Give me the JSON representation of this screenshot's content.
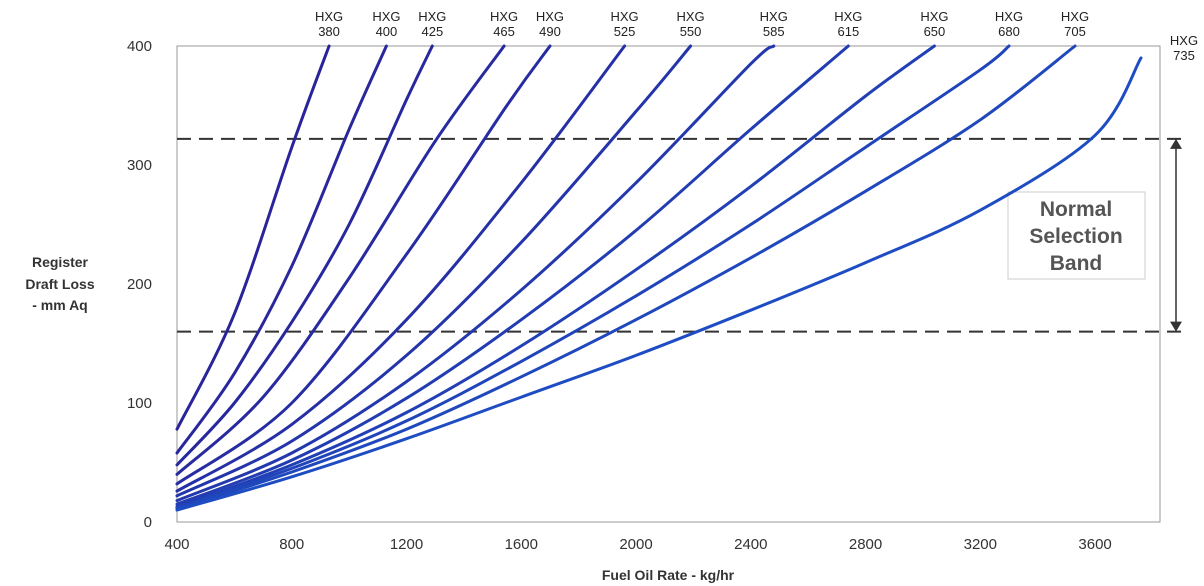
{
  "chart_data": {
    "type": "line",
    "title": "",
    "xlabel": "Fuel Oil Rate - kg/hr",
    "ylabel_lines": [
      "Register",
      "Draft Loss",
      "- mm Aq"
    ],
    "xlim": [
      400,
      3800
    ],
    "ylim": [
      0,
      400
    ],
    "x_ticks": [
      400,
      800,
      1200,
      1600,
      2000,
      2400,
      2800,
      3200,
      3600
    ],
    "y_ticks": [
      0,
      100,
      200,
      300,
      400
    ],
    "grid": false,
    "line_color": "#2a2aa0",
    "band": {
      "lower": 160,
      "upper": 322,
      "label_lines": [
        "Normal",
        "Selection",
        "Band"
      ]
    },
    "series": [
      {
        "name": "HXG 380",
        "label_lines": [
          "HXG",
          "380"
        ],
        "color": "#2a249a",
        "x": [
          400,
          600,
          800,
          930
        ],
        "y": [
          78,
          175,
          315,
          400
        ]
      },
      {
        "name": "HXG 400",
        "label_lines": [
          "HXG",
          "400"
        ],
        "color": "#2a269c",
        "x": [
          400,
          600,
          800,
          1000,
          1130
        ],
        "y": [
          58,
          125,
          215,
          330,
          400
        ]
      },
      {
        "name": "HXG 425",
        "label_lines": [
          "HXG",
          "425"
        ],
        "color": "#28289e",
        "x": [
          400,
          600,
          800,
          1000,
          1200,
          1290
        ],
        "y": [
          48,
          100,
          168,
          250,
          355,
          400
        ]
      },
      {
        "name": "HXG 465",
        "label_lines": [
          "HXG",
          "465"
        ],
        "color": "#282aa0",
        "x": [
          400,
          700,
          1000,
          1300,
          1540
        ],
        "y": [
          40,
          105,
          205,
          320,
          400
        ]
      },
      {
        "name": "HXG 490",
        "label_lines": [
          "HXG",
          "490"
        ],
        "color": "#262ca2",
        "x": [
          400,
          800,
          1200,
          1550,
          1700
        ],
        "y": [
          32,
          100,
          225,
          350,
          400
        ]
      },
      {
        "name": "HXG 525",
        "label_lines": [
          "HXG",
          "525"
        ],
        "color": "#2630a6",
        "x": [
          400,
          800,
          1200,
          1600,
          1960
        ],
        "y": [
          26,
          82,
          170,
          285,
          400
        ]
      },
      {
        "name": "HXG 550",
        "label_lines": [
          "HXG",
          "550"
        ],
        "color": "#2434aa",
        "x": [
          400,
          800,
          1200,
          1600,
          2000,
          2190
        ],
        "y": [
          22,
          68,
          140,
          235,
          345,
          400
        ]
      },
      {
        "name": "HXG 585",
        "label_lines": [
          "HXG",
          "585"
        ],
        "color": "#2438ae",
        "x": [
          400,
          800,
          1200,
          1600,
          2000,
          2400,
          2480
        ],
        "y": [
          18,
          58,
          118,
          195,
          285,
          385,
          400
        ]
      },
      {
        "name": "HXG 615",
        "label_lines": [
          "HXG",
          "615"
        ],
        "color": "#223cb2",
        "x": [
          400,
          800,
          1200,
          1600,
          2000,
          2400,
          2740
        ],
        "y": [
          15,
          52,
          104,
          170,
          245,
          330,
          400
        ]
      },
      {
        "name": "HXG 650",
        "label_lines": [
          "HXG",
          "650"
        ],
        "color": "#2240b6",
        "x": [
          400,
          800,
          1200,
          1600,
          2000,
          2400,
          2800,
          3040
        ],
        "y": [
          13,
          48,
          92,
          148,
          212,
          282,
          358,
          400
        ]
      },
      {
        "name": "HXG 680",
        "label_lines": [
          "HXG",
          "680"
        ],
        "color": "#2044ba",
        "x": [
          400,
          800,
          1200,
          1600,
          2000,
          2400,
          2800,
          3200,
          3300
        ],
        "y": [
          12,
          45,
          85,
          135,
          190,
          250,
          315,
          380,
          400
        ]
      },
      {
        "name": "HXG 705",
        "label_lines": [
          "HXG",
          "705"
        ],
        "color": "#2048bd",
        "x": [
          400,
          800,
          1200,
          1600,
          2000,
          2400,
          2800,
          3200,
          3530
        ],
        "y": [
          11,
          42,
          78,
          122,
          170,
          222,
          278,
          338,
          400
        ]
      },
      {
        "name": "HXG 735",
        "label_lines": [
          "HXG",
          "735"
        ],
        "color": "#1e4cc2",
        "x": [
          400,
          800,
          1200,
          1600,
          2000,
          2400,
          2800,
          3200,
          3600,
          3760
        ],
        "y": [
          10,
          38,
          70,
          105,
          140,
          178,
          218,
          262,
          325,
          390
        ]
      }
    ]
  }
}
